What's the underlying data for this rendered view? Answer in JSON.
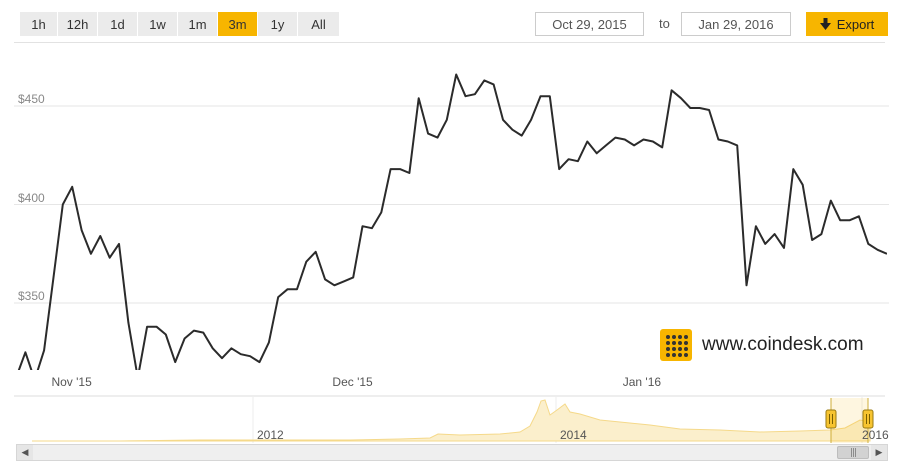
{
  "toolbar": {
    "ranges": [
      {
        "label": "1h",
        "active": false
      },
      {
        "label": "12h",
        "active": false
      },
      {
        "label": "1d",
        "active": false
      },
      {
        "label": "1w",
        "active": false
      },
      {
        "label": "1m",
        "active": false
      },
      {
        "label": "3m",
        "active": true
      },
      {
        "label": "1y",
        "active": false
      },
      {
        "label": "All",
        "active": false
      }
    ],
    "from_date": "Oct 29, 2015",
    "to_label": "to",
    "to_date": "Jan 29, 2016",
    "export_label": "Export",
    "export_icon": "download-arrow-icon"
  },
  "watermark": {
    "text": "www.coindesk.com",
    "logo_icon": "coindesk-logo-icon"
  },
  "navigator": {
    "labels": [
      "2012",
      "2014",
      "2016"
    ],
    "handle_icon": "range-handle-icon",
    "scroll_left_icon": "scroll-left-arrow-icon",
    "scroll_right_icon": "scroll-right-arrow-icon",
    "thumb_grip_icon": "grip-icon"
  },
  "colors": {
    "accent": "#f7b500",
    "line": "#2b2b2b",
    "navigator_line": "#f5d98a",
    "grid": "#e6e6e6"
  },
  "chart_data": {
    "type": "line",
    "title": "",
    "xlabel": "",
    "ylabel": "",
    "x_ticks": [
      "Nov '15",
      "Dec '15",
      "Jan '16"
    ],
    "y_ticks": [
      "$350",
      "$400",
      "$450"
    ],
    "y_tick_values": [
      350,
      400,
      450
    ],
    "ylim": [
      316,
      482
    ],
    "x_range": [
      "2015-10-28",
      "2016-01-29"
    ],
    "grid": "horizontal",
    "series": [
      {
        "name": "",
        "x": [
          "2015-10-28",
          "2015-10-29",
          "2015-10-30",
          "2015-10-31",
          "2015-11-01",
          "2015-11-02",
          "2015-11-03",
          "2015-11-04",
          "2015-11-05",
          "2015-11-06",
          "2015-11-07",
          "2015-11-08",
          "2015-11-09",
          "2015-11-10",
          "2015-11-11",
          "2015-11-12",
          "2015-11-13",
          "2015-11-14",
          "2015-11-15",
          "2015-11-16",
          "2015-11-17",
          "2015-11-18",
          "2015-11-19",
          "2015-11-20",
          "2015-11-21",
          "2015-11-22",
          "2015-11-23",
          "2015-11-24",
          "2015-11-25",
          "2015-11-26",
          "2015-11-27",
          "2015-11-28",
          "2015-11-29",
          "2015-11-30",
          "2015-12-01",
          "2015-12-02",
          "2015-12-03",
          "2015-12-04",
          "2015-12-05",
          "2015-12-06",
          "2015-12-07",
          "2015-12-08",
          "2015-12-09",
          "2015-12-10",
          "2015-12-11",
          "2015-12-12",
          "2015-12-13",
          "2015-12-14",
          "2015-12-15",
          "2015-12-16",
          "2015-12-17",
          "2015-12-18",
          "2015-12-19",
          "2015-12-20",
          "2015-12-21",
          "2015-12-22",
          "2015-12-23",
          "2015-12-24",
          "2015-12-25",
          "2015-12-26",
          "2015-12-27",
          "2015-12-28",
          "2015-12-29",
          "2015-12-30",
          "2015-12-31",
          "2016-01-01",
          "2016-01-02",
          "2016-01-03",
          "2016-01-04",
          "2016-01-05",
          "2016-01-06",
          "2016-01-07",
          "2016-01-08",
          "2016-01-09",
          "2016-01-10",
          "2016-01-11",
          "2016-01-12",
          "2016-01-13",
          "2016-01-14",
          "2016-01-15",
          "2016-01-16",
          "2016-01-17",
          "2016-01-18",
          "2016-01-19",
          "2016-01-20",
          "2016-01-21",
          "2016-01-22",
          "2016-01-23",
          "2016-01-24",
          "2016-01-25",
          "2016-01-26",
          "2016-01-27",
          "2016-01-28",
          "2016-01-29"
        ],
        "values": [
          312,
          325,
          311,
          326,
          363,
          400,
          409,
          387,
          375,
          384,
          373,
          380,
          340,
          312,
          338,
          338,
          334,
          320,
          332,
          336,
          335,
          327,
          322,
          327,
          324,
          323,
          320,
          330,
          353,
          357,
          357,
          371,
          376,
          362,
          359,
          361,
          363,
          389,
          388,
          396,
          418,
          418,
          416,
          454,
          436,
          434,
          443,
          466,
          455,
          456,
          463,
          461,
          443,
          438,
          435,
          443,
          455,
          455,
          418,
          423,
          422,
          432,
          426,
          430,
          434,
          433,
          430,
          433,
          432,
          429,
          458,
          454,
          449,
          449,
          448,
          433,
          432,
          430,
          359,
          389,
          380,
          385,
          378,
          418,
          410,
          382,
          385,
          402,
          392,
          392,
          394,
          380,
          377,
          375
        ]
      }
    ]
  }
}
